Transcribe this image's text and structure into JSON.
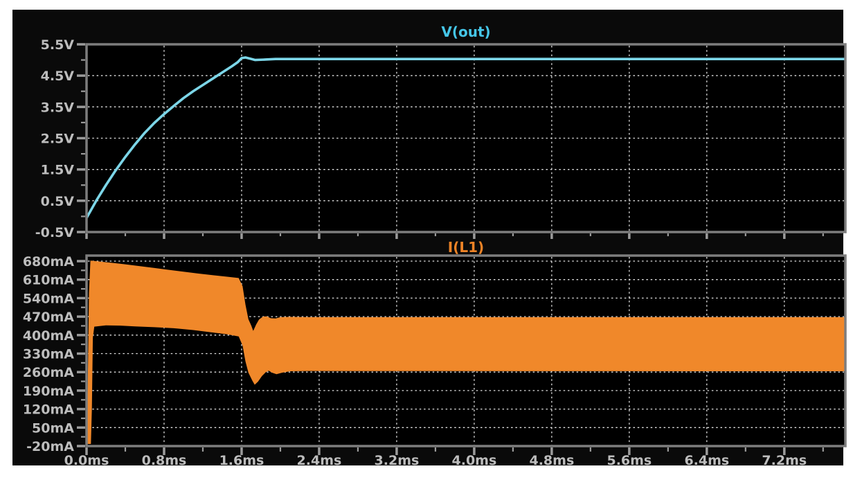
{
  "style": {
    "page_background": "#ffffff",
    "window_background": "#0a0a0a",
    "pane_background": "#000000",
    "border_color": "#7d7d7d",
    "grid_color": "#e2e2e2",
    "tick_color": "#9b9b9b",
    "label_color": "#bdbdbd"
  },
  "time_axis": {
    "unit": "ms",
    "xmax": 7.83,
    "major": [
      0,
      0.8,
      1.6,
      2.4,
      3.2,
      4.0,
      4.8,
      5.6,
      6.4,
      7.2
    ],
    "labels": [
      "0.0ms",
      "0.8ms",
      "1.6ms",
      "2.4ms",
      "3.2ms",
      "4.0ms",
      "4.8ms",
      "5.6ms",
      "6.4ms",
      "7.2ms"
    ],
    "minor": [
      0.4,
      1.2,
      2.0,
      2.8,
      3.6,
      4.4,
      5.2,
      6.0,
      6.8,
      7.6
    ]
  },
  "chart_data": [
    {
      "type": "line",
      "title": "V(out)",
      "xlabel": "",
      "ylabel": "",
      "legend": "none",
      "grid": true,
      "trace_color": "#7cd6e8",
      "title_color": "#45c6e8",
      "xlim": [
        0,
        7.83
      ],
      "ylim": [
        -0.5,
        5.5
      ],
      "y_ticks": [
        5.5,
        4.5,
        3.5,
        2.5,
        1.5,
        0.5,
        -0.5
      ],
      "y_tick_labels": [
        "5.5V",
        "4.5V",
        "3.5V",
        "2.5V",
        "1.5V",
        "0.5V",
        "-0.5V"
      ],
      "y_grid": [
        4.5,
        3.5,
        2.5,
        1.5,
        0.5
      ],
      "y_minor": [
        5.0,
        4.0,
        3.0,
        2.0,
        1.0,
        0.0
      ],
      "series": [
        {
          "name": "V(out)",
          "points": [
            [
              0,
              -0.05
            ],
            [
              0.1,
              0.5
            ],
            [
              0.2,
              1.0
            ],
            [
              0.3,
              1.47
            ],
            [
              0.4,
              1.9
            ],
            [
              0.5,
              2.3
            ],
            [
              0.6,
              2.67
            ],
            [
              0.7,
              2.99
            ],
            [
              0.8,
              3.27
            ],
            [
              0.9,
              3.53
            ],
            [
              1.0,
              3.78
            ],
            [
              1.1,
              4.0
            ],
            [
              1.2,
              4.2
            ],
            [
              1.3,
              4.4
            ],
            [
              1.4,
              4.6
            ],
            [
              1.5,
              4.8
            ],
            [
              1.56,
              4.93
            ],
            [
              1.6,
              5.06
            ],
            [
              1.64,
              5.08
            ],
            [
              1.69,
              5.04
            ],
            [
              1.74,
              5.0
            ],
            [
              1.82,
              5.01
            ],
            [
              1.95,
              5.03
            ],
            [
              2.3,
              5.03
            ],
            [
              7.83,
              5.03
            ]
          ]
        }
      ]
    },
    {
      "type": "area",
      "title": "I(L1)",
      "xlabel": "",
      "ylabel": "",
      "legend": "none",
      "grid": true,
      "trace_color": "#f0882a",
      "title_color": "#ee8326",
      "xlim": [
        0,
        7.83
      ],
      "ylim": [
        -20,
        701
      ],
      "y_ticks": [
        680,
        610,
        540,
        470,
        400,
        330,
        260,
        190,
        120,
        50,
        -20
      ],
      "y_tick_labels": [
        "680mA",
        "610mA",
        "540mA",
        "470mA",
        "400mA",
        "330mA",
        "260mA",
        "190mA",
        "120mA",
        "50mA",
        "-20mA"
      ],
      "y_grid": [
        680,
        610,
        540,
        470,
        400,
        330,
        260,
        190,
        120,
        50
      ],
      "y_minor": [
        645,
        575,
        505,
        435,
        365,
        295,
        225,
        155,
        85,
        15
      ],
      "band": {
        "name": "I(L1)",
        "upper": [
          [
            0,
            -12
          ],
          [
            0.012,
            200
          ],
          [
            0.025,
            560
          ],
          [
            0.04,
            682
          ],
          [
            0.12,
            679
          ],
          [
            0.25,
            674
          ],
          [
            0.4,
            668
          ],
          [
            0.55,
            661
          ],
          [
            0.7,
            654
          ],
          [
            0.85,
            647
          ],
          [
            1.0,
            640
          ],
          [
            1.15,
            633
          ],
          [
            1.3,
            627
          ],
          [
            1.45,
            621
          ],
          [
            1.57,
            616
          ],
          [
            1.61,
            585
          ],
          [
            1.64,
            515
          ],
          [
            1.67,
            460
          ],
          [
            1.7,
            436
          ],
          [
            1.72,
            416
          ],
          [
            1.75,
            440
          ],
          [
            1.78,
            459
          ],
          [
            1.82,
            470
          ],
          [
            1.86,
            471
          ],
          [
            1.9,
            464
          ],
          [
            1.95,
            463
          ],
          [
            2.0,
            468
          ],
          [
            2.1,
            469
          ],
          [
            2.3,
            468
          ],
          [
            7.83,
            468
          ]
        ],
        "lower": [
          [
            0,
            -12
          ],
          [
            0.045,
            -12
          ],
          [
            0.055,
            120
          ],
          [
            0.065,
            390
          ],
          [
            0.08,
            432
          ],
          [
            0.2,
            437
          ],
          [
            0.35,
            436
          ],
          [
            0.5,
            433
          ],
          [
            0.7,
            430
          ],
          [
            0.9,
            426
          ],
          [
            1.1,
            419
          ],
          [
            1.3,
            410
          ],
          [
            1.45,
            403
          ],
          [
            1.57,
            395
          ],
          [
            1.61,
            360
          ],
          [
            1.64,
            300
          ],
          [
            1.67,
            258
          ],
          [
            1.71,
            228
          ],
          [
            1.735,
            212
          ],
          [
            1.77,
            224
          ],
          [
            1.81,
            245
          ],
          [
            1.85,
            260
          ],
          [
            1.88,
            265
          ],
          [
            1.92,
            257
          ],
          [
            1.96,
            252
          ],
          [
            2.02,
            258
          ],
          [
            2.1,
            263
          ],
          [
            2.3,
            264
          ],
          [
            7.83,
            263
          ]
        ]
      }
    }
  ]
}
